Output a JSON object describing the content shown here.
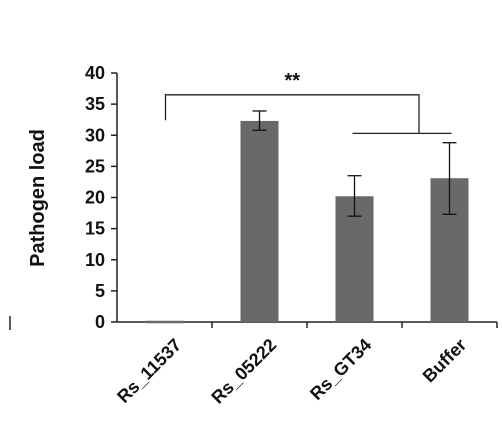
{
  "chart_data": {
    "type": "bar",
    "categories": [
      "Rs_11537",
      "Rs_05222",
      "Rs_GT34",
      "Buffer"
    ],
    "values": [
      0.2,
      32.3,
      20.2,
      23.1
    ],
    "error_low": [
      0.2,
      30.8,
      17.0,
      17.3
    ],
    "error_high": [
      0.2,
      33.9,
      23.5,
      28.8
    ],
    "ylabel": "Pathogen load",
    "xlabel": "",
    "ylim": [
      0,
      40
    ],
    "yticks": [
      0,
      5,
      10,
      15,
      20,
      25,
      30,
      35,
      40
    ],
    "bar_color": "#696969",
    "grid": false,
    "significance": {
      "label": "**",
      "left_group": [
        "Rs_11537"
      ],
      "right_group": [
        "Rs_GT34",
        "Buffer"
      ]
    }
  }
}
